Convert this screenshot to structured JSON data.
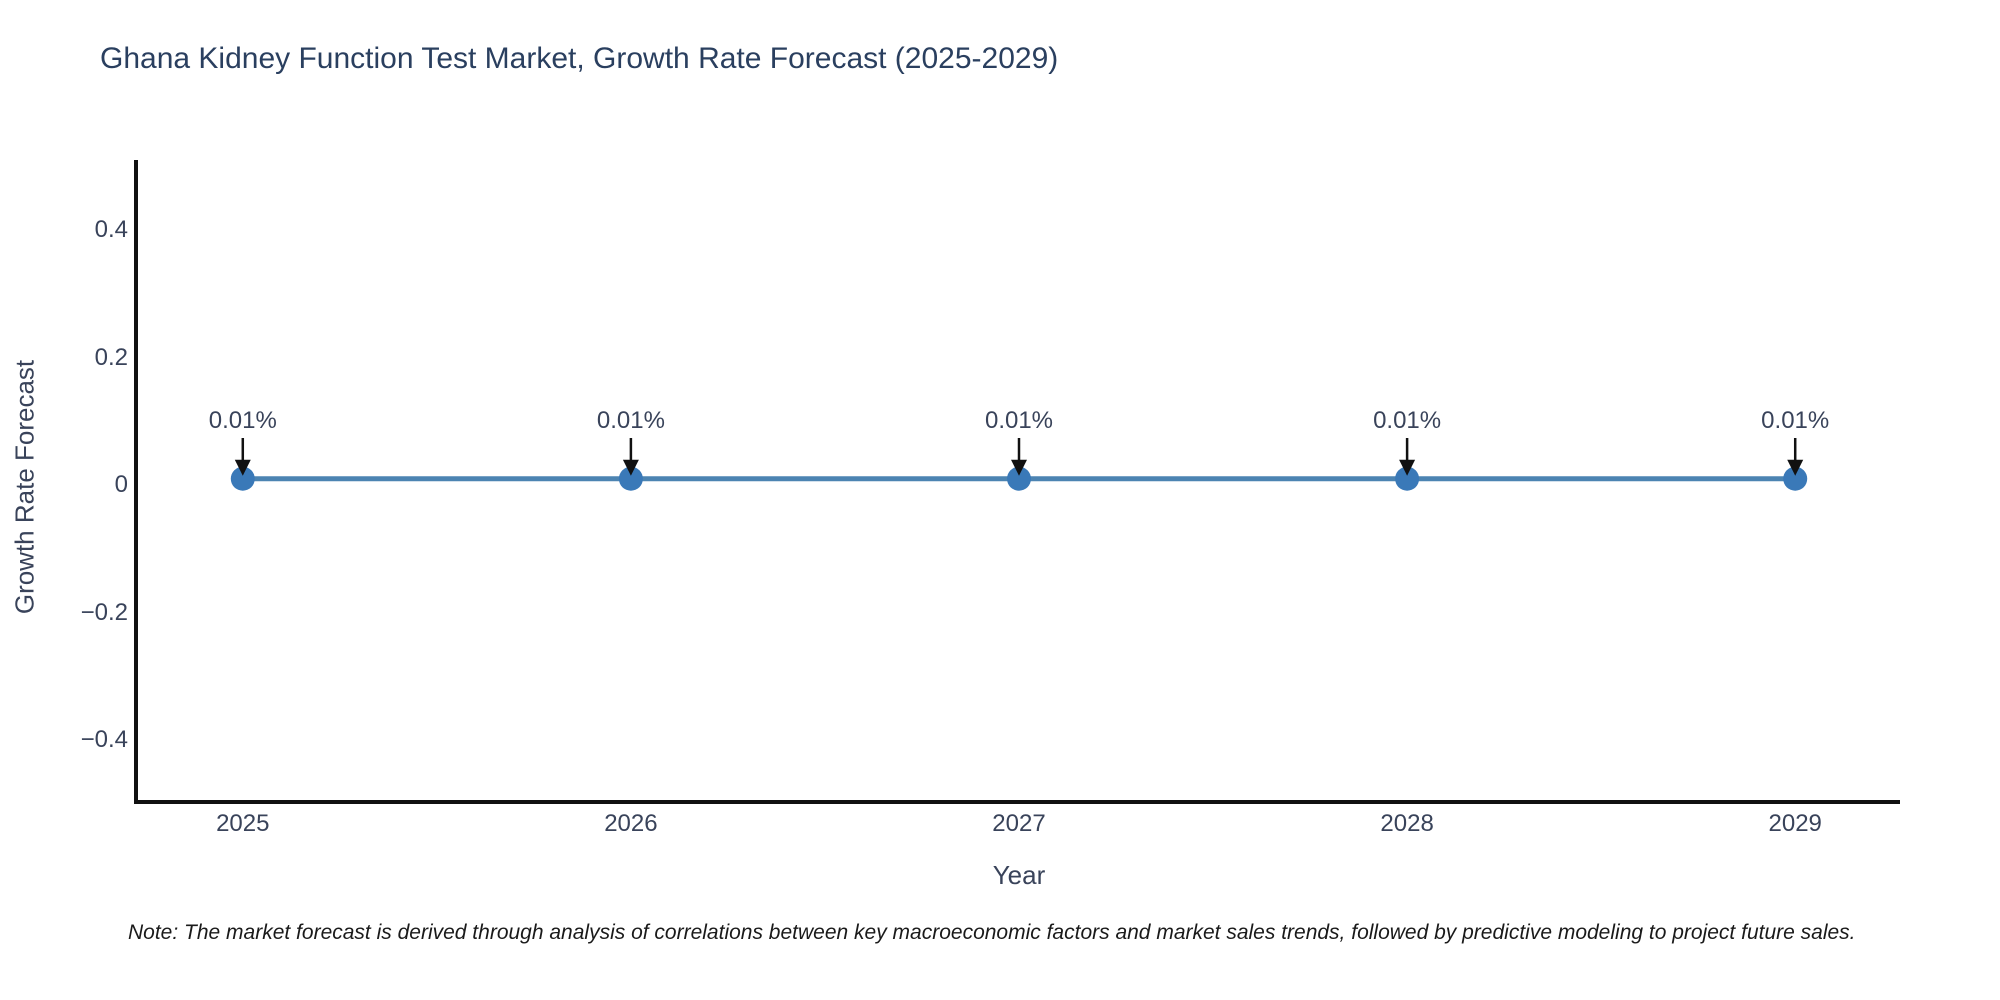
{
  "title": "Ghana Kidney Function Test Market, Growth Rate Forecast (2025-2029)",
  "note": "Note: The market forecast is derived through analysis of correlations between key macroeconomic factors and market sales trends, followed by predictive modeling to project future sales.",
  "colors": {
    "background": "#ffffff",
    "title_text": "#2a3f5f",
    "axis_text": "#39435a",
    "spine": "#111111",
    "line": "#4c84b2",
    "marker": "#3a79b8",
    "arrow": "#111111",
    "note_text": "#1a1a1a"
  },
  "chart_data": {
    "type": "line",
    "title": "Ghana Kidney Function Test Market, Growth Rate Forecast (2025-2029)",
    "xlabel": "Year",
    "ylabel": "Growth Rate Forecast",
    "x": [
      2025,
      2026,
      2027,
      2028,
      2029
    ],
    "y": [
      0.01,
      0.01,
      0.01,
      0.01,
      0.01
    ],
    "point_labels": [
      "0.01%",
      "0.01%",
      "0.01%",
      "0.01%",
      "0.01%"
    ],
    "xtick_values": [
      2025,
      2026,
      2027,
      2028,
      2029
    ],
    "xtick_labels": [
      "2025",
      "2026",
      "2027",
      "2028",
      "2029"
    ],
    "ytick_values": [
      0.4,
      0.2,
      0,
      -0.2,
      -0.4
    ],
    "ytick_labels": [
      "0.4",
      "0.2",
      "0",
      "−0.2",
      "−0.4"
    ],
    "xlim": [
      2024.73,
      2029.27
    ],
    "ylim": [
      -0.494,
      0.51
    ],
    "grid": false,
    "legend": "none",
    "marker_style": "circle",
    "annotation_arrow": "down"
  }
}
